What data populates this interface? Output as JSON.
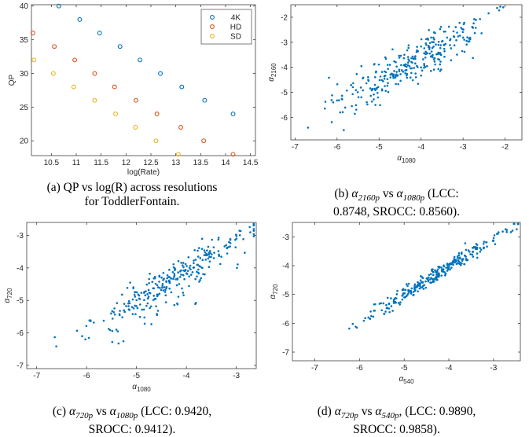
{
  "colors": {
    "blue": "#0072BD",
    "orange": "#D95319",
    "yellow": "#EDB120",
    "axis": "#262626"
  },
  "captions": [
    {
      "prefix": "(a) QP vs log(R) across resolutions",
      "line2": "for ToddlerFontain."
    },
    {
      "prefix": "(b) ",
      "a": "α",
      "asub": "2160p",
      "mid": " vs ",
      "b": "α",
      "bsub": "1080p",
      "tail": " (LCC:",
      "line2": "0.8748, SROCC: 0.8560)."
    },
    {
      "prefix": "(c) ",
      "a": "α",
      "asub": "720p",
      "mid": " vs ",
      "b": "α",
      "bsub": "1080p",
      "tail": " (LCC: 0.9420,",
      "line2": "SROCC: 0.9412)."
    },
    {
      "prefix": "(d) ",
      "a": "α",
      "asub": "720p",
      "mid": " vs ",
      "b": "α",
      "bsub": "540p",
      "tail": ", (LCC: 0.9890,",
      "line2": "SROCC: 0.9858)."
    }
  ],
  "chart_data": [
    {
      "type": "scatter",
      "xlabel": "log(Rate)",
      "ylabel": "QP",
      "xlim": [
        10.1,
        14.6
      ],
      "ylim": [
        17.8,
        40.2
      ],
      "xticks": [
        10.5,
        11,
        11.5,
        12,
        12.5,
        13,
        13.5,
        14,
        14.5
      ],
      "yticks": [
        20,
        25,
        30,
        35,
        40
      ],
      "marker": "circle",
      "legend": "top-right",
      "series": [
        {
          "name": "4K",
          "color": "#0072BD",
          "x": [
            10.65,
            11.07,
            11.47,
            11.88,
            12.28,
            12.69,
            13.12,
            13.58,
            14.15
          ],
          "y": [
            40,
            38,
            36,
            34,
            32,
            30,
            28,
            26,
            24
          ]
        },
        {
          "name": "HD",
          "color": "#D95319",
          "x": [
            10.13,
            10.56,
            10.97,
            11.37,
            11.77,
            12.2,
            12.62,
            13.1,
            13.56,
            14.15
          ],
          "y": [
            36,
            34,
            32,
            30,
            28,
            26,
            24,
            22,
            20,
            18
          ]
        },
        {
          "name": "SD",
          "color": "#EDB120",
          "x": [
            10.15,
            10.54,
            10.95,
            11.37,
            11.79,
            12.19,
            12.6,
            13.05
          ],
          "y": [
            32,
            30,
            28,
            26,
            24,
            22,
            20,
            18
          ]
        }
      ]
    },
    {
      "type": "scatter",
      "xlabel": "α1080",
      "xlabel_main": "α",
      "xlabel_sub": "1080",
      "ylabel_main": "α",
      "ylabel_sub": "2160",
      "xlim": [
        -7.1,
        -1.6
      ],
      "ylim": [
        -6.9,
        -1.5
      ],
      "xticks": [
        -7,
        -6,
        -5,
        -4,
        -3,
        -2
      ],
      "yticks": [
        -6,
        -5,
        -4,
        -3,
        -2
      ],
      "n_points": 300,
      "relation": {
        "slope": 0.9,
        "intercept": -0.05,
        "noise": 0.42,
        "x_mean": -4.2,
        "x_sd": 0.9
      }
    },
    {
      "type": "scatter",
      "xlabel_main": "α",
      "xlabel_sub": "1080",
      "ylabel_main": "α",
      "ylabel_sub": "720",
      "xlim": [
        -7.2,
        -2.6
      ],
      "ylim": [
        -7.1,
        -2.6
      ],
      "xticks": [
        -7,
        -6,
        -5,
        -4,
        -3
      ],
      "yticks": [
        -7,
        -6,
        -5,
        -4,
        -3
      ],
      "n_points": 300,
      "relation": {
        "slope": 0.92,
        "intercept": -0.4,
        "noise": 0.25,
        "x_mean": -4.3,
        "x_sd": 0.85
      }
    },
    {
      "type": "scatter",
      "xlabel_main": "α",
      "xlabel_sub": "540",
      "ylabel_main": "α",
      "ylabel_sub": "720",
      "xlim": [
        -7.5,
        -2.4
      ],
      "ylim": [
        -7.3,
        -2.5
      ],
      "xticks": [
        -7,
        -6,
        -5,
        -4,
        -3
      ],
      "yticks": [
        -7,
        -6,
        -5,
        -4,
        -3
      ],
      "n_points": 300,
      "relation": {
        "slope": 0.98,
        "intercept": -0.12,
        "noise": 0.13,
        "x_mean": -4.3,
        "x_sd": 0.85
      }
    }
  ]
}
